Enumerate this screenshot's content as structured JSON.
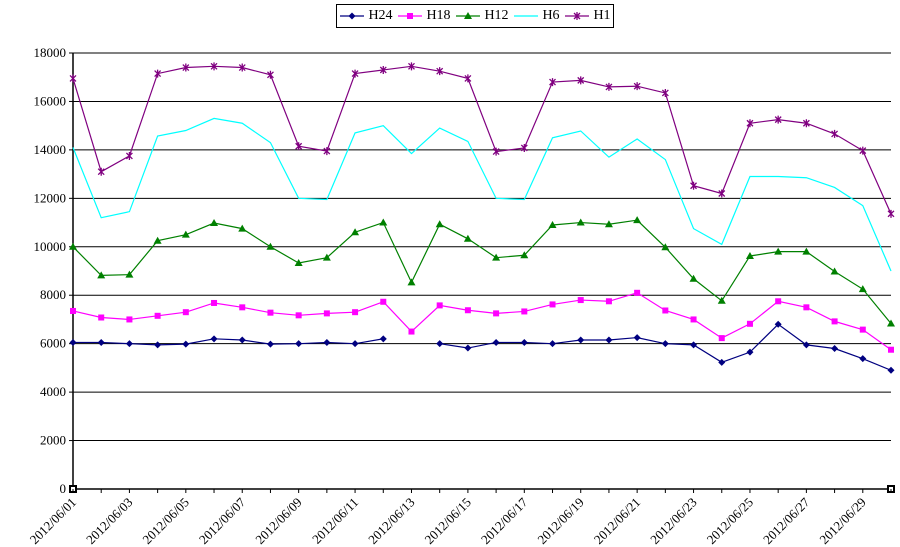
{
  "chart_data": {
    "type": "line",
    "title": "",
    "xlabel": "",
    "ylabel": "",
    "ylim": [
      0,
      18000
    ],
    "yticks": [
      0,
      2000,
      4000,
      6000,
      8000,
      10000,
      12000,
      14000,
      16000,
      18000
    ],
    "ytick_labels": [
      "0",
      "2000",
      "4000",
      "6000",
      "8000",
      "10000",
      "12000",
      "14000",
      "16000",
      "18000"
    ],
    "categories": [
      "2012/06/01",
      "2012/06/02",
      "2012/06/03",
      "2012/06/04",
      "2012/06/05",
      "2012/06/06",
      "2012/06/07",
      "2012/06/08",
      "2012/06/09",
      "2012/06/10",
      "2012/06/11",
      "2012/06/12",
      "2012/06/13",
      "2012/06/14",
      "2012/06/15",
      "2012/06/16",
      "2012/06/17",
      "2012/06/18",
      "2012/06/19",
      "2012/06/20",
      "2012/06/21",
      "2012/06/22",
      "2012/06/23",
      "2012/06/24",
      "2012/06/25",
      "2012/06/26",
      "2012/06/27",
      "2012/06/28",
      "2012/06/29",
      "2012/06/30"
    ],
    "xtick_labels": [
      "2012/06/01",
      "2012/06/03",
      "2012/06/05",
      "2012/06/07",
      "2012/06/09",
      "2012/06/11",
      "2012/06/13",
      "2012/06/15",
      "2012/06/17",
      "2012/06/19",
      "2012/06/21",
      "2012/06/23",
      "2012/06/25",
      "2012/06/27",
      "2012/06/29"
    ],
    "grid": "horizontal",
    "legend_position": "top",
    "series": [
      {
        "name": "H24",
        "color": "#000080",
        "marker": "diamond",
        "values": [
          6050,
          6050,
          6000,
          5950,
          5980,
          6200,
          6150,
          5980,
          6000,
          6050,
          6000,
          6200,
          null,
          6000,
          5820,
          6050,
          6050,
          6000,
          6150,
          6150,
          6250,
          6000,
          5950,
          5230,
          5650,
          6800,
          5950,
          5800,
          5380,
          4900
        ]
      },
      {
        "name": "H18",
        "color": "#ff00ff",
        "marker": "square",
        "values": [
          7350,
          7080,
          7000,
          7150,
          7300,
          7680,
          7500,
          7280,
          7170,
          7250,
          7300,
          7730,
          6500,
          7580,
          7380,
          7250,
          7330,
          7620,
          7800,
          7750,
          8100,
          7370,
          7000,
          6230,
          6820,
          7750,
          7500,
          6920,
          6580,
          5750
        ]
      },
      {
        "name": "H12",
        "color": "#008000",
        "marker": "triangle",
        "values": [
          10000,
          8820,
          8850,
          10250,
          10500,
          10980,
          10750,
          10000,
          9330,
          9550,
          10600,
          11000,
          8530,
          10930,
          10330,
          9550,
          9650,
          10900,
          11000,
          10930,
          11100,
          9980,
          8680,
          7770,
          9620,
          9800,
          9800,
          8980,
          8250,
          6830
        ]
      },
      {
        "name": "H6",
        "color": "#00ffff",
        "marker": "none",
        "values": [
          14100,
          11200,
          11450,
          14570,
          14800,
          15300,
          15100,
          14300,
          12000,
          11950,
          14700,
          15000,
          13850,
          14900,
          14350,
          12000,
          11950,
          14500,
          14780,
          13700,
          14450,
          13600,
          10750,
          10100,
          12900,
          12900,
          12850,
          12450,
          11700,
          9000
        ]
      },
      {
        "name": "H1",
        "color": "#800080",
        "marker": "star",
        "values": [
          16950,
          13100,
          13750,
          17150,
          17400,
          17450,
          17400,
          17100,
          14150,
          13950,
          17150,
          17300,
          17450,
          17250,
          16950,
          13930,
          14080,
          16800,
          16870,
          16600,
          16630,
          16350,
          12520,
          12200,
          15100,
          15250,
          15100,
          14660,
          13970,
          11360
        ]
      }
    ]
  }
}
